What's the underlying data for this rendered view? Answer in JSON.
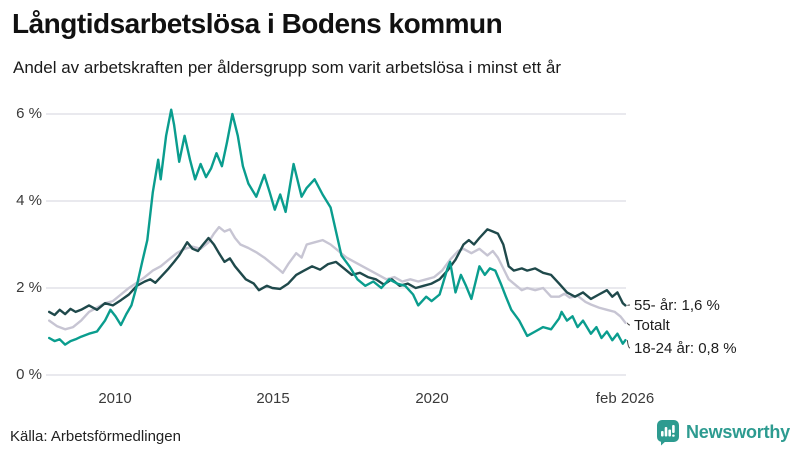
{
  "header": {
    "title": "Långtidsarbetslösa i Bodens kommun",
    "subtitle": "Andel av arbetskraften per åldersgrupp som varit arbetslösa i minst ett år"
  },
  "footer": {
    "source": "Källa: Arbetsförmedlingen",
    "brand": "Newsworthy"
  },
  "colors": {
    "series_55": "#1f494b",
    "series_total": "#c7c5d3",
    "series_18_24": "#0a9d8e",
    "gridline": "#e2e2e8",
    "axis_text": "#3a3a3a",
    "leader_line": "#444444",
    "brand_teal": "#2d9b90",
    "background": "#ffffff"
  },
  "chart_data": {
    "type": "line",
    "title": "Långtidsarbetslösa i Bodens kommun",
    "subtitle": "Andel av arbetskraften per åldersgrupp som varit arbetslösa i minst ett år",
    "source": "Källa: Arbetsförmedlingen",
    "unit": "%",
    "grid": true,
    "legend_position": "end-of-line-labels",
    "xlim": [
      2007.9,
      2026.1
    ],
    "ylim": [
      0,
      6.2
    ],
    "ytick_values": [
      0,
      2,
      4,
      6
    ],
    "ytick_labels": [
      "0 %",
      "2 %",
      "4 %",
      "6 %"
    ],
    "xticks": [
      {
        "value": 2010,
        "label": "2010"
      },
      {
        "value": 2015,
        "label": "2015"
      },
      {
        "value": 2020,
        "label": "2020"
      },
      {
        "value": 2026.08,
        "label": "feb 2026"
      }
    ],
    "series": [
      {
        "name": "55- år",
        "end_label": "55- år: 1,6 %",
        "last_value": 1.6,
        "color": "#1f494b",
        "points": [
          [
            2008.0,
            1.45
          ],
          [
            2008.17,
            1.38
          ],
          [
            2008.33,
            1.5
          ],
          [
            2008.5,
            1.4
          ],
          [
            2008.67,
            1.52
          ],
          [
            2008.83,
            1.45
          ],
          [
            2009.0,
            1.5
          ],
          [
            2009.25,
            1.6
          ],
          [
            2009.5,
            1.5
          ],
          [
            2009.75,
            1.65
          ],
          [
            2010.0,
            1.6
          ],
          [
            2010.25,
            1.72
          ],
          [
            2010.5,
            1.85
          ],
          [
            2010.75,
            2.05
          ],
          [
            2011.0,
            2.15
          ],
          [
            2011.17,
            2.2
          ],
          [
            2011.33,
            2.12
          ],
          [
            2011.5,
            2.25
          ],
          [
            2011.75,
            2.45
          ],
          [
            2011.92,
            2.6
          ],
          [
            2012.08,
            2.75
          ],
          [
            2012.33,
            3.05
          ],
          [
            2012.5,
            2.9
          ],
          [
            2012.67,
            2.85
          ],
          [
            2012.83,
            3.0
          ],
          [
            2013.0,
            3.15
          ],
          [
            2013.17,
            3.0
          ],
          [
            2013.33,
            2.8
          ],
          [
            2013.5,
            2.6
          ],
          [
            2013.67,
            2.68
          ],
          [
            2013.83,
            2.5
          ],
          [
            2014.0,
            2.35
          ],
          [
            2014.17,
            2.2
          ],
          [
            2014.42,
            2.1
          ],
          [
            2014.58,
            1.95
          ],
          [
            2014.83,
            2.05
          ],
          [
            2015.0,
            2.0
          ],
          [
            2015.25,
            1.98
          ],
          [
            2015.5,
            2.1
          ],
          [
            2015.75,
            2.3
          ],
          [
            2016.0,
            2.4
          ],
          [
            2016.25,
            2.5
          ],
          [
            2016.5,
            2.42
          ],
          [
            2016.75,
            2.55
          ],
          [
            2017.0,
            2.6
          ],
          [
            2017.25,
            2.45
          ],
          [
            2017.5,
            2.3
          ],
          [
            2017.75,
            2.35
          ],
          [
            2018.0,
            2.25
          ],
          [
            2018.25,
            2.2
          ],
          [
            2018.5,
            2.08
          ],
          [
            2018.75,
            2.2
          ],
          [
            2019.0,
            2.05
          ],
          [
            2019.25,
            2.1
          ],
          [
            2019.5,
            2.0
          ],
          [
            2019.75,
            2.05
          ],
          [
            2020.0,
            2.1
          ],
          [
            2020.25,
            2.2
          ],
          [
            2020.5,
            2.4
          ],
          [
            2020.75,
            2.65
          ],
          [
            2021.0,
            3.0
          ],
          [
            2021.17,
            3.1
          ],
          [
            2021.33,
            3.0
          ],
          [
            2021.5,
            3.15
          ],
          [
            2021.75,
            3.35
          ],
          [
            2021.92,
            3.3
          ],
          [
            2022.08,
            3.25
          ],
          [
            2022.25,
            3.0
          ],
          [
            2022.42,
            2.5
          ],
          [
            2022.58,
            2.4
          ],
          [
            2022.83,
            2.45
          ],
          [
            2023.0,
            2.4
          ],
          [
            2023.25,
            2.45
          ],
          [
            2023.5,
            2.35
          ],
          [
            2023.75,
            2.3
          ],
          [
            2024.0,
            2.1
          ],
          [
            2024.25,
            1.9
          ],
          [
            2024.5,
            1.8
          ],
          [
            2024.75,
            1.9
          ],
          [
            2025.0,
            1.75
          ],
          [
            2025.25,
            1.85
          ],
          [
            2025.5,
            1.95
          ],
          [
            2025.67,
            1.8
          ],
          [
            2025.83,
            1.9
          ],
          [
            2026.0,
            1.65
          ],
          [
            2026.08,
            1.6
          ]
        ]
      },
      {
        "name": "Totalt",
        "end_label": "Totalt",
        "last_value": 1.2,
        "color": "#c7c5d3",
        "points": [
          [
            2008.0,
            1.25
          ],
          [
            2008.25,
            1.12
          ],
          [
            2008.5,
            1.05
          ],
          [
            2008.75,
            1.1
          ],
          [
            2009.0,
            1.25
          ],
          [
            2009.25,
            1.45
          ],
          [
            2009.5,
            1.55
          ],
          [
            2009.75,
            1.65
          ],
          [
            2010.0,
            1.7
          ],
          [
            2010.25,
            1.85
          ],
          [
            2010.5,
            2.0
          ],
          [
            2010.75,
            2.12
          ],
          [
            2011.0,
            2.25
          ],
          [
            2011.25,
            2.4
          ],
          [
            2011.5,
            2.5
          ],
          [
            2011.75,
            2.65
          ],
          [
            2012.0,
            2.8
          ],
          [
            2012.25,
            2.9
          ],
          [
            2012.5,
            2.95
          ],
          [
            2012.75,
            2.9
          ],
          [
            2013.0,
            3.05
          ],
          [
            2013.17,
            3.25
          ],
          [
            2013.33,
            3.4
          ],
          [
            2013.5,
            3.3
          ],
          [
            2013.67,
            3.35
          ],
          [
            2013.83,
            3.15
          ],
          [
            2014.0,
            3.0
          ],
          [
            2014.25,
            2.92
          ],
          [
            2014.5,
            2.82
          ],
          [
            2014.75,
            2.7
          ],
          [
            2015.0,
            2.55
          ],
          [
            2015.17,
            2.45
          ],
          [
            2015.33,
            2.35
          ],
          [
            2015.5,
            2.55
          ],
          [
            2015.75,
            2.8
          ],
          [
            2015.92,
            2.7
          ],
          [
            2016.08,
            3.0
          ],
          [
            2016.33,
            3.05
          ],
          [
            2016.58,
            3.1
          ],
          [
            2016.83,
            3.0
          ],
          [
            2017.08,
            2.85
          ],
          [
            2017.33,
            2.7
          ],
          [
            2017.58,
            2.6
          ],
          [
            2017.83,
            2.5
          ],
          [
            2018.08,
            2.4
          ],
          [
            2018.33,
            2.3
          ],
          [
            2018.58,
            2.2
          ],
          [
            2018.83,
            2.25
          ],
          [
            2019.08,
            2.15
          ],
          [
            2019.33,
            2.2
          ],
          [
            2019.58,
            2.15
          ],
          [
            2019.83,
            2.2
          ],
          [
            2020.08,
            2.25
          ],
          [
            2020.33,
            2.4
          ],
          [
            2020.58,
            2.65
          ],
          [
            2020.83,
            2.85
          ],
          [
            2021.0,
            2.9
          ],
          [
            2021.25,
            2.8
          ],
          [
            2021.5,
            2.9
          ],
          [
            2021.75,
            2.75
          ],
          [
            2021.92,
            2.85
          ],
          [
            2022.08,
            2.7
          ],
          [
            2022.25,
            2.45
          ],
          [
            2022.42,
            2.2
          ],
          [
            2022.58,
            2.1
          ],
          [
            2022.83,
            1.95
          ],
          [
            2023.0,
            2.0
          ],
          [
            2023.25,
            1.95
          ],
          [
            2023.5,
            2.0
          ],
          [
            2023.75,
            1.8
          ],
          [
            2024.0,
            1.8
          ],
          [
            2024.17,
            1.87
          ],
          [
            2024.33,
            1.78
          ],
          [
            2024.58,
            1.82
          ],
          [
            2024.83,
            1.68
          ],
          [
            2025.0,
            1.62
          ],
          [
            2025.25,
            1.55
          ],
          [
            2025.5,
            1.5
          ],
          [
            2025.75,
            1.45
          ],
          [
            2025.92,
            1.35
          ],
          [
            2026.08,
            1.2
          ]
        ]
      },
      {
        "name": "18-24 år",
        "end_label": "18-24 år: 0,8 %",
        "last_value": 0.8,
        "color": "#0a9d8e",
        "points": [
          [
            2008.0,
            0.85
          ],
          [
            2008.17,
            0.78
          ],
          [
            2008.33,
            0.82
          ],
          [
            2008.5,
            0.7
          ],
          [
            2008.67,
            0.78
          ],
          [
            2008.83,
            0.82
          ],
          [
            2009.0,
            0.88
          ],
          [
            2009.25,
            0.95
          ],
          [
            2009.5,
            1.0
          ],
          [
            2009.75,
            1.25
          ],
          [
            2009.92,
            1.5
          ],
          [
            2010.08,
            1.35
          ],
          [
            2010.25,
            1.15
          ],
          [
            2010.42,
            1.4
          ],
          [
            2010.58,
            1.6
          ],
          [
            2010.75,
            2.05
          ],
          [
            2010.92,
            2.6
          ],
          [
            2011.08,
            3.1
          ],
          [
            2011.25,
            4.2
          ],
          [
            2011.42,
            4.95
          ],
          [
            2011.5,
            4.5
          ],
          [
            2011.67,
            5.5
          ],
          [
            2011.83,
            6.1
          ],
          [
            2011.92,
            5.75
          ],
          [
            2012.08,
            4.9
          ],
          [
            2012.25,
            5.5
          ],
          [
            2012.42,
            4.95
          ],
          [
            2012.58,
            4.5
          ],
          [
            2012.75,
            4.85
          ],
          [
            2012.92,
            4.55
          ],
          [
            2013.08,
            4.75
          ],
          [
            2013.25,
            5.1
          ],
          [
            2013.42,
            4.8
          ],
          [
            2013.58,
            5.35
          ],
          [
            2013.75,
            6.0
          ],
          [
            2013.92,
            5.5
          ],
          [
            2014.08,
            4.8
          ],
          [
            2014.25,
            4.4
          ],
          [
            2014.5,
            4.1
          ],
          [
            2014.75,
            4.6
          ],
          [
            2014.92,
            4.2
          ],
          [
            2015.08,
            3.8
          ],
          [
            2015.25,
            4.15
          ],
          [
            2015.42,
            3.75
          ],
          [
            2015.67,
            4.85
          ],
          [
            2015.92,
            4.1
          ],
          [
            2016.08,
            4.3
          ],
          [
            2016.33,
            4.5
          ],
          [
            2016.58,
            4.15
          ],
          [
            2016.83,
            3.85
          ],
          [
            2017.0,
            3.3
          ],
          [
            2017.17,
            2.75
          ],
          [
            2017.42,
            2.5
          ],
          [
            2017.67,
            2.2
          ],
          [
            2017.92,
            2.05
          ],
          [
            2018.17,
            2.15
          ],
          [
            2018.42,
            2.0
          ],
          [
            2018.67,
            2.2
          ],
          [
            2018.92,
            2.1
          ],
          [
            2019.17,
            2.05
          ],
          [
            2019.42,
            1.85
          ],
          [
            2019.58,
            1.6
          ],
          [
            2019.83,
            1.8
          ],
          [
            2020.0,
            1.7
          ],
          [
            2020.25,
            1.85
          ],
          [
            2020.5,
            2.45
          ],
          [
            2020.58,
            2.6
          ],
          [
            2020.75,
            1.9
          ],
          [
            2020.92,
            2.3
          ],
          [
            2021.08,
            2.05
          ],
          [
            2021.25,
            1.75
          ],
          [
            2021.5,
            2.5
          ],
          [
            2021.67,
            2.3
          ],
          [
            2021.83,
            2.45
          ],
          [
            2022.0,
            2.4
          ],
          [
            2022.17,
            2.1
          ],
          [
            2022.33,
            1.8
          ],
          [
            2022.5,
            1.5
          ],
          [
            2022.75,
            1.25
          ],
          [
            2023.0,
            0.9
          ],
          [
            2023.25,
            1.0
          ],
          [
            2023.5,
            1.1
          ],
          [
            2023.75,
            1.05
          ],
          [
            2024.0,
            1.3
          ],
          [
            2024.08,
            1.45
          ],
          [
            2024.25,
            1.25
          ],
          [
            2024.42,
            1.35
          ],
          [
            2024.58,
            1.1
          ],
          [
            2024.75,
            1.25
          ],
          [
            2025.0,
            0.95
          ],
          [
            2025.17,
            1.1
          ],
          [
            2025.33,
            0.85
          ],
          [
            2025.5,
            1.0
          ],
          [
            2025.67,
            0.8
          ],
          [
            2025.83,
            0.95
          ],
          [
            2026.0,
            0.72
          ],
          [
            2026.08,
            0.8
          ]
        ]
      }
    ]
  }
}
